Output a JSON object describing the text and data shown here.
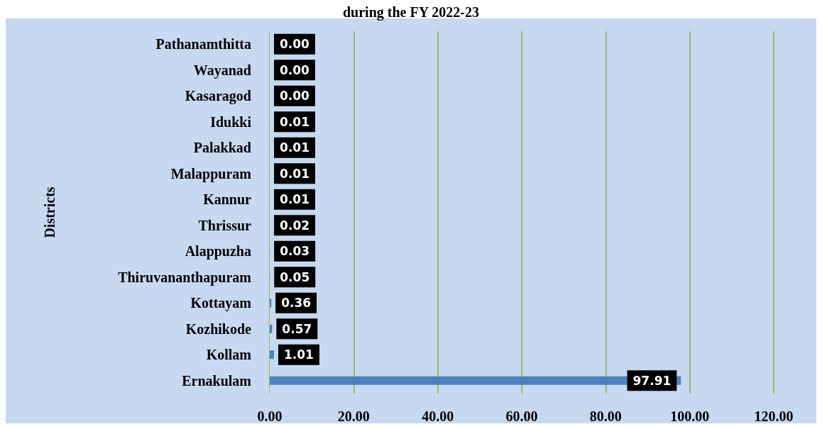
{
  "chart_data": {
    "type": "bar",
    "orientation": "horizontal",
    "title": "during the FY 2022-23",
    "ylabel": "Districts",
    "categories": [
      "Pathanamthitta",
      "Wayanad",
      "Kasaragod",
      "Idukki",
      "Palakkad",
      "Malappuram",
      "Kannur",
      "Thrissur",
      "Alappuzha",
      "Thiruvananthapuram",
      "Kottayam",
      "Kozhikode",
      "Kollam",
      "Ernakulam"
    ],
    "values": [
      0,
      0,
      0,
      0.01,
      0.01,
      0.01,
      0.01,
      0.02,
      0.03,
      0.05,
      0.36,
      0.57,
      1.01,
      97.91
    ],
    "value_labels": [
      "0.00",
      "0.00",
      "0.00",
      "0.01",
      "0.01",
      "0.01",
      "0.01",
      "0.02",
      "0.03",
      "0.05",
      "0.36",
      "0.57",
      "1.01",
      "97.91"
    ],
    "color": "#4f81bd",
    "xlim": [
      0,
      120
    ],
    "xticks": [
      {
        "value": 0,
        "label": "0.00"
      },
      {
        "value": 20,
        "label": "20.00"
      },
      {
        "value": 40,
        "label": "40.00"
      },
      {
        "value": 60,
        "label": "60.00"
      },
      {
        "value": 80,
        "label": "80.00"
      },
      {
        "value": 100,
        "label": "100.00"
      },
      {
        "value": 120,
        "label": "120.00"
      }
    ],
    "grid": "x"
  }
}
